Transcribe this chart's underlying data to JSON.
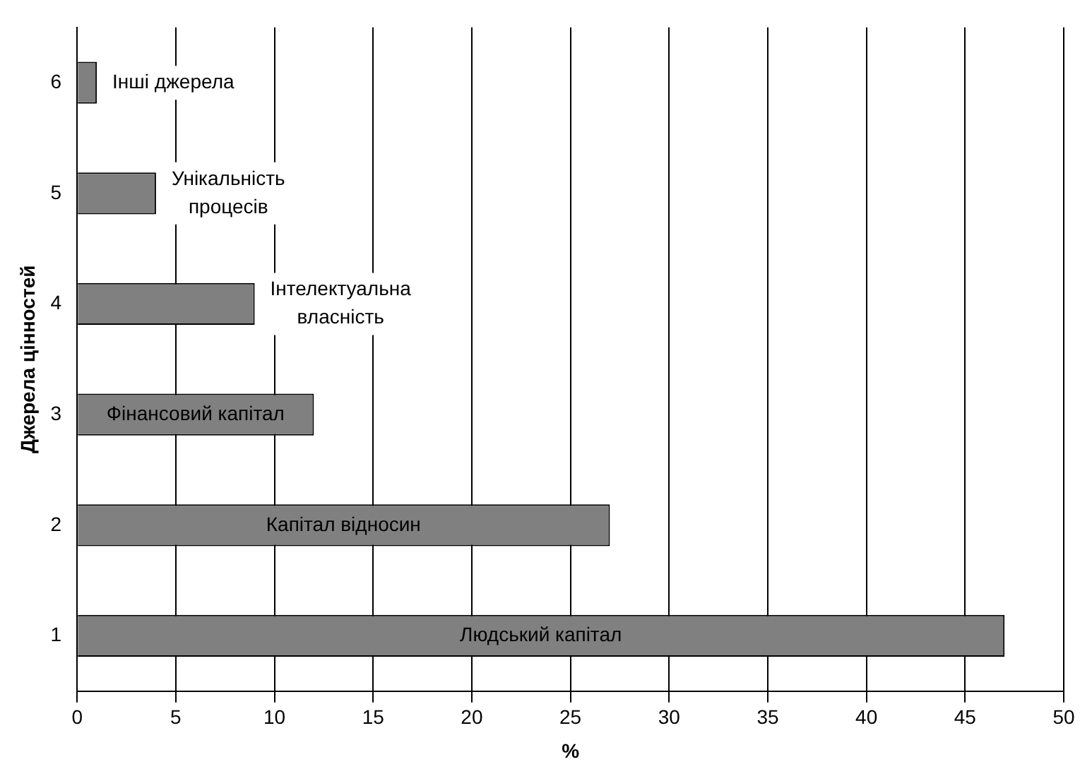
{
  "chart_data": {
    "type": "bar",
    "orientation": "horizontal",
    "xlabel": "%",
    "ylabel": "Джерела цінностей",
    "categories": [
      "6",
      "5",
      "4",
      "3",
      "2",
      "1"
    ],
    "values": [
      1,
      4,
      9,
      12,
      27,
      47
    ],
    "color": "#808080",
    "xlim": [
      0,
      50
    ],
    "xticks": [
      0,
      5,
      10,
      15,
      20,
      25,
      30,
      35,
      40,
      45,
      50
    ],
    "grid": "x",
    "legend": false,
    "annotations": [
      "Інші джерела",
      "Унікальність процесів",
      "Інтелектуальна власність",
      "Фінансовий капітал",
      "Капітал відносин",
      "Людський капітал"
    ]
  }
}
